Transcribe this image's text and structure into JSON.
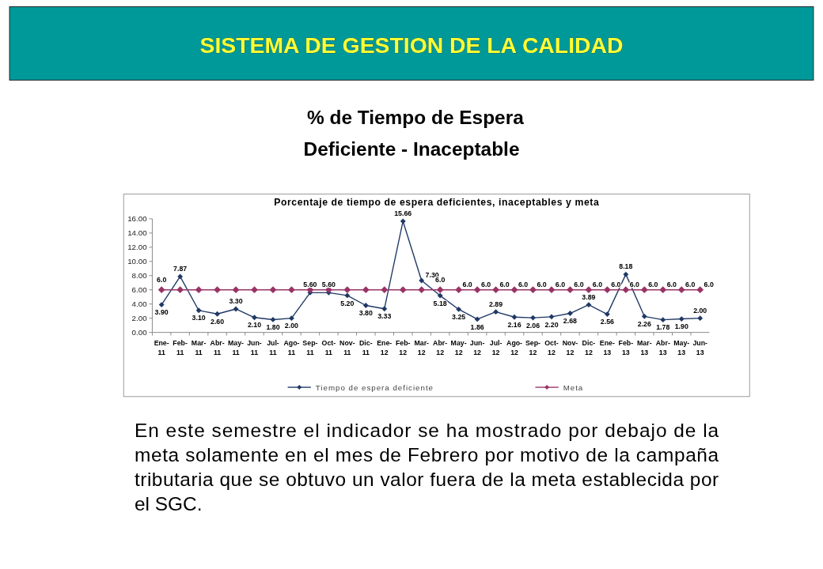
{
  "chart_data": {
    "type": "line",
    "title": "Porcentaje de tiempo de espera deficientes, inaceptables y meta",
    "annotations": [
      "SISTEMA DE GESTION DE LA CALIDAD",
      "% de Tiempo de Espera",
      "Deficiente - Inaceptable",
      "En este semestre el indicador se ha mostrado por debajo de la meta solamente en el mes de Febrero por motivo de la campaña tributaria que se obtuvo un valor fuera de la meta establecida por el SGC."
    ],
    "categories": [
      "Ene-11",
      "Feb-11",
      "Mar-11",
      "Abr-11",
      "May-11",
      "Jun-11",
      "Jul-11",
      "Ago-11",
      "Sep-11",
      "Oct-11",
      "Nov-11",
      "Dic-11",
      "Ene-12",
      "Feb-12",
      "Mar-12",
      "Abr-12",
      "May-12",
      "Jun-12",
      "Jul-12",
      "Ago-12",
      "Sep-12",
      "Oct-12",
      "Nov-12",
      "Dic-12",
      "Ene-13",
      "Feb-13",
      "Mar-13",
      "Abr-13",
      "May-13",
      "Jun-13"
    ],
    "series": [
      {
        "name": "Tiempo de espera deficiente",
        "color": "#1f3864",
        "values": [
          3.9,
          7.87,
          3.1,
          2.6,
          3.3,
          2.1,
          1.8,
          2.0,
          5.6,
          5.6,
          5.2,
          3.8,
          3.33,
          15.66,
          7.3,
          5.18,
          3.25,
          1.86,
          2.89,
          2.16,
          2.06,
          2.2,
          2.68,
          3.89,
          2.56,
          8.18,
          2.26,
          1.78,
          1.9,
          2.0
        ],
        "value_labels": [
          "3.90",
          "7.87",
          "3.10",
          "2.60",
          "3.30",
          "2.10",
          "1.80",
          "2.00",
          "5.60",
          "5.60",
          "5.20",
          "3.80",
          "3.33",
          "15.66",
          "7.30",
          "5.18",
          "3.25",
          "1.86",
          "2.89",
          "2.16",
          "2.06",
          "2.20",
          "2.68",
          "3.89",
          "2.56",
          "8.18",
          "2.26",
          "1.78",
          "1.90",
          "2.00"
        ]
      },
      {
        "name": "Meta",
        "color": "#993366",
        "values": [
          6,
          6,
          6,
          6,
          6,
          6,
          6,
          6,
          6,
          6,
          6,
          6,
          6,
          6,
          6,
          6,
          6,
          6,
          6,
          6,
          6,
          6,
          6,
          6,
          6,
          6,
          6,
          6,
          6,
          6
        ],
        "value_labels": [
          "6.0",
          null,
          null,
          null,
          null,
          null,
          null,
          null,
          null,
          null,
          null,
          null,
          null,
          null,
          null,
          "6.0",
          "6.0",
          "6.0",
          "6.0",
          "6.0",
          "6.0",
          "6.0",
          "6.0",
          "6.0",
          "6.0",
          "6.0",
          "6.0",
          "6.0",
          "6.0",
          "6.0"
        ]
      }
    ],
    "ylim": [
      0,
      16
    ],
    "yticks": [
      {
        "value": 0,
        "label": "0.00"
      },
      {
        "value": 2,
        "label": "2.00"
      },
      {
        "value": 4,
        "label": "4.00"
      },
      {
        "value": 6,
        "label": "6.00"
      },
      {
        "value": 8,
        "label": "8.00"
      },
      {
        "value": 10,
        "label": "10.00"
      },
      {
        "value": 12,
        "label": "12.00"
      },
      {
        "value": 14,
        "label": "14.00"
      },
      {
        "value": 16,
        "label": "16.00"
      }
    ],
    "legend": "bottom",
    "marker": "diamond",
    "grid": false
  }
}
